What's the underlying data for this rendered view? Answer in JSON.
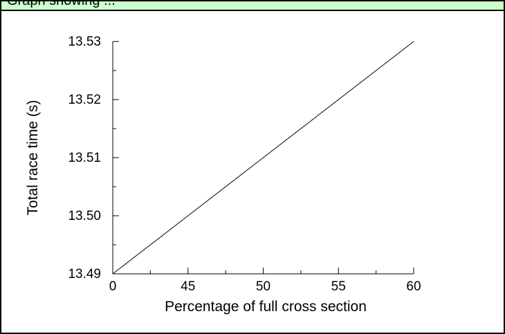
{
  "banner": {
    "text": "Graph showing ...",
    "background": "#ccffcc"
  },
  "chart_data": {
    "type": "line",
    "title": "",
    "xlabel": "Percentage of full cross section",
    "ylabel": "Total race time  (s)",
    "x_tick_labels": [
      "0",
      "45",
      "50",
      "55",
      "60"
    ],
    "y_tick_labels": [
      "13.49",
      "13.50",
      "13.51",
      "13.52",
      "13.53"
    ],
    "ylim": [
      13.49,
      13.53
    ],
    "grid": false,
    "series": [
      {
        "x": [
          "0",
          "45",
          "50",
          "55",
          "60"
        ],
        "values": [
          13.49,
          13.5,
          13.51,
          13.52,
          13.53
        ]
      }
    ],
    "line_color": "#000000"
  }
}
